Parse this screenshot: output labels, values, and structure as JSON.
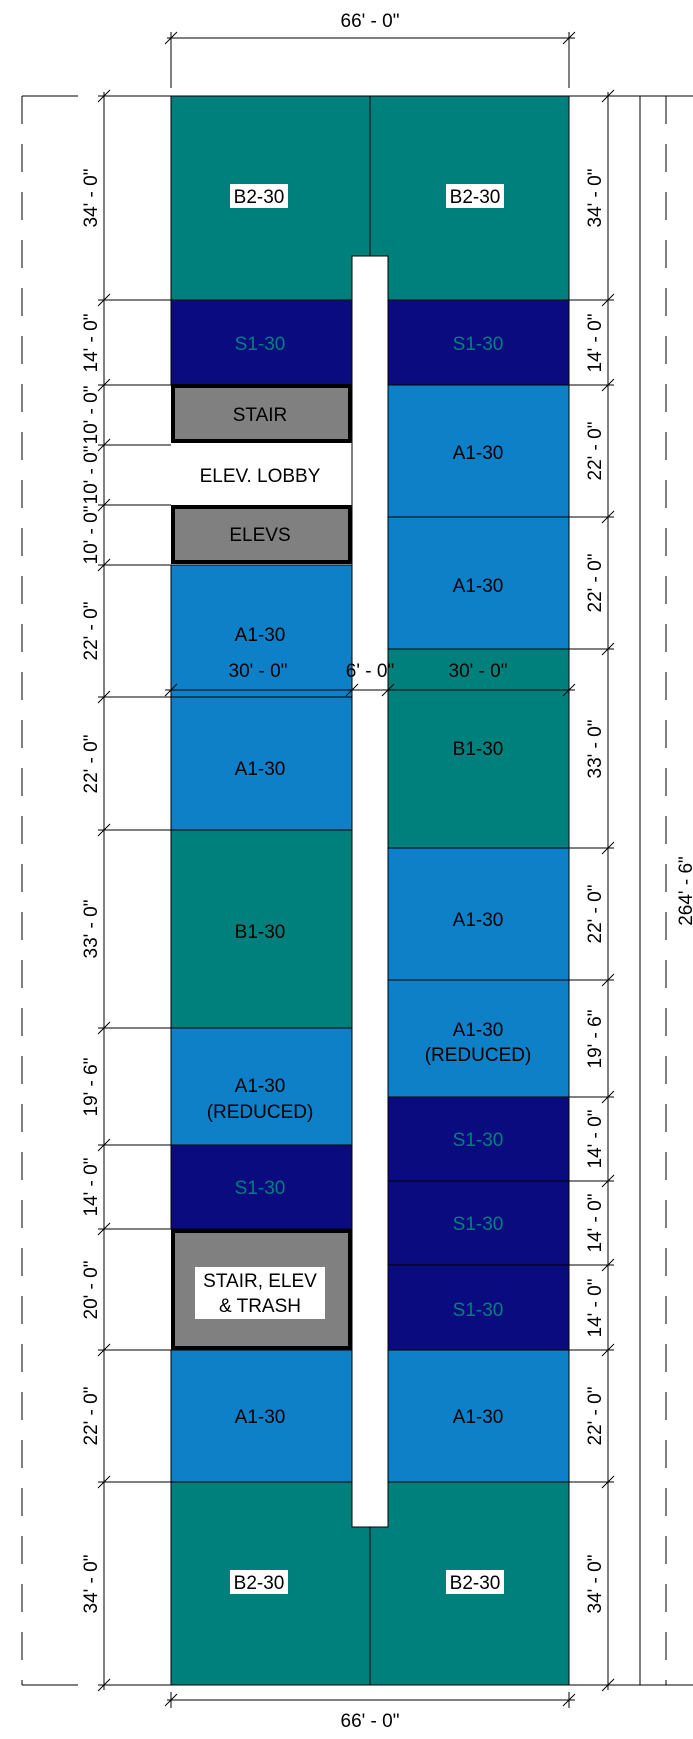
{
  "colors": {
    "b_unit": "#00807c",
    "s_unit": "#0b0b80",
    "a_unit": "#0d80c8",
    "core": "#808080",
    "white": "#ffffff",
    "line": "#000000"
  },
  "dims": {
    "top_width": "66' - 0\"",
    "bottom_width": "66' - 0\"",
    "overall_height": "264' - 6\"",
    "mid_left": "30' - 0\"",
    "mid_corridor": "6' - 0\"",
    "mid_right": "30' - 0\"",
    "left": [
      "34' - 0\"",
      "14' - 0\"",
      "10' - 0\"",
      "10' - 0\"",
      "10' - 0\"",
      "22' - 0\"",
      "22' - 0\"",
      "33' - 0\"",
      "19' - 6\"",
      "14' - 0\"",
      "20' - 0\"",
      "22' - 0\"",
      "34' - 0\""
    ],
    "right": [
      "34' - 0\"",
      "14' - 0\"",
      "22' - 0\"",
      "22' - 0\"",
      "33' - 0\"",
      "22' - 0\"",
      "19' - 6\"",
      "14' - 0\"",
      "14' - 0\"",
      "14' - 0\"",
      "22' - 0\"",
      "34' - 0\""
    ]
  },
  "units": {
    "left_top": "B2-30",
    "right_top": "B2-30",
    "left_s1_top": "S1-30",
    "right_s1_top": "S1-30",
    "stair": "STAIR",
    "elev_lobby": "ELEV. LOBBY",
    "elevs": "ELEVS",
    "left_a1_1": "A1-30",
    "right_a1_1": "A1-30",
    "right_a1_2": "A1-30",
    "left_a1_2": "A1-30",
    "right_b1": "B1-30",
    "left_b1": "B1-30",
    "right_a1_3": "A1-30",
    "right_a1_reduced": [
      "A1-30",
      "(REDUCED)"
    ],
    "left_a1_reduced": [
      "A1-30",
      "(REDUCED)"
    ],
    "right_s1_1": "S1-30",
    "left_s1_mid": "S1-30",
    "right_s1_2": "S1-30",
    "right_s1_3": "S1-30",
    "core_lower": [
      "STAIR, ELEV",
      "& TRASH"
    ],
    "left_a1_bottom": "A1-30",
    "right_a1_bottom": "A1-30",
    "left_bottom": "B2-30",
    "right_bottom": "B2-30"
  }
}
